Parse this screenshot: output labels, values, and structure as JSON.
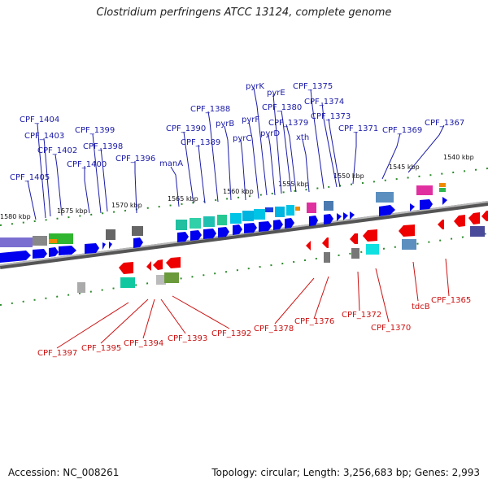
{
  "title": "Clostridium perfringens ATCC 13124, complete genome",
  "accession": "Accession: NC_008261",
  "summary": "Topology: circular; Length: 3,256,683 bp; Genes: 2,993",
  "colors": {
    "forward": "#1a1aa8",
    "reverse": "#cc1111",
    "gene_fwd": "#0000ee",
    "gene_rev": "#ee0000",
    "backbone": "#8a8a8a",
    "tick": "#2a8a2a"
  },
  "scale_labels": [
    "1580 kbp",
    "1575 kbp",
    "1570 kbp",
    "1565 kbp",
    "1560 kbp",
    "1555 kbp",
    "1550 kbp",
    "1545 kbp",
    "1540 kbp"
  ],
  "top_labels": [
    "CPF_1404",
    "CPF_1403",
    "CPF_1402",
    "CPF_1405",
    "CPF_1399",
    "CPF_1398",
    "CPF_1400",
    "CPF_1396",
    "manA",
    "CPF_1390",
    "CPF_1389",
    "CPF_1388",
    "pyrB",
    "pyrC",
    "pyrF",
    "pyrK",
    "pyrD",
    "pyrE",
    "CPF_1380",
    "CPF_1379",
    "CPF_1375",
    "CPF_1374",
    "CPF_1373",
    "xth",
    "CPF_1371",
    "CPF_1369",
    "CPF_1367"
  ],
  "bottom_labels": [
    "CPF_1397",
    "CPF_1395",
    "CPF_1394",
    "CPF_1393",
    "CPF_1392",
    "CPF_1378",
    "CPF_1376",
    "CPF_1372",
    "CPF_1370",
    "tdcB",
    "CPF_1365"
  ]
}
